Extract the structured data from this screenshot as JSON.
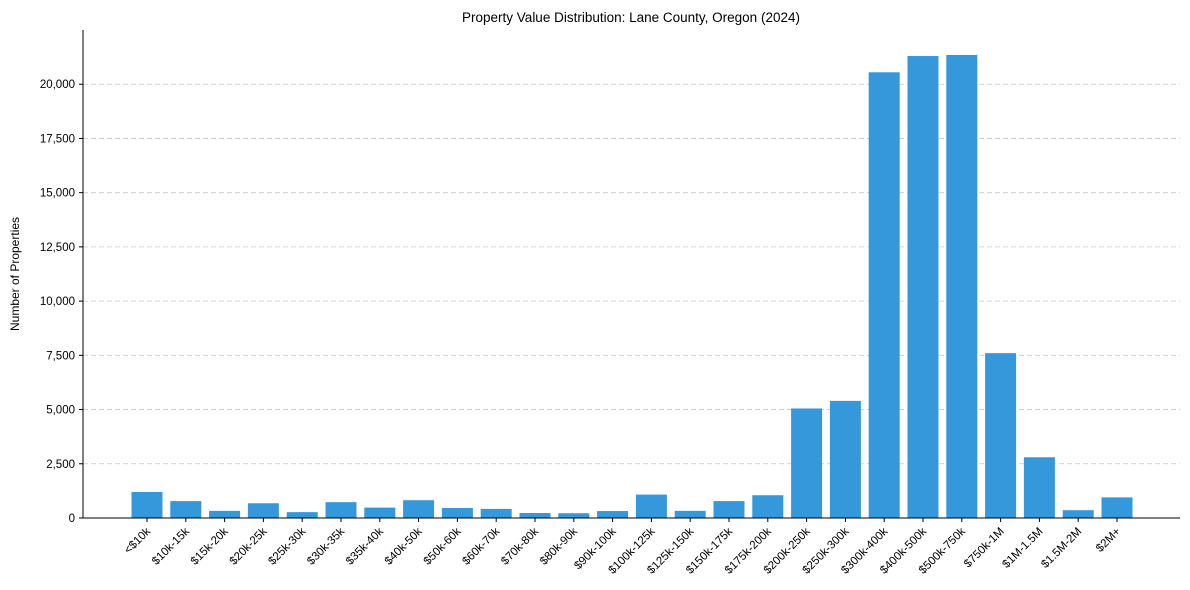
{
  "chart_data": {
    "type": "bar",
    "title": "Property Value Distribution: Lane County, Oregon (2024)",
    "xlabel": "",
    "ylabel": "Number of Properties",
    "ylim": [
      0,
      22500
    ],
    "yticks": [
      0,
      2500,
      5000,
      7500,
      10000,
      12500,
      15000,
      17500,
      20000
    ],
    "ytick_labels": [
      "0",
      "2,500",
      "5,000",
      "7,500",
      "10,000",
      "12,500",
      "15,000",
      "17,500",
      "20,000"
    ],
    "grid": "y-dashed",
    "bar_color": "#3498db",
    "categories": [
      "<$10k",
      "$10k-15k",
      "$15k-20k",
      "$20k-25k",
      "$25k-30k",
      "$30k-35k",
      "$35k-40k",
      "$40k-50k",
      "$50k-60k",
      "$60k-70k",
      "$70k-80k",
      "$80k-90k",
      "$90k-100k",
      "$100k-125k",
      "$125k-150k",
      "$150k-175k",
      "$175k-200k",
      "$200k-250k",
      "$250k-300k",
      "$300k-400k",
      "$400k-500k",
      "$500k-750k",
      "$750k-1M",
      "$1M-1.5M",
      "$1.5M-2M",
      "$2M+"
    ],
    "values": [
      1200,
      780,
      330,
      680,
      270,
      730,
      480,
      820,
      460,
      420,
      230,
      220,
      320,
      1080,
      330,
      780,
      1050,
      5050,
      5400,
      20550,
      21300,
      21350,
      7600,
      2800,
      360,
      950
    ]
  }
}
